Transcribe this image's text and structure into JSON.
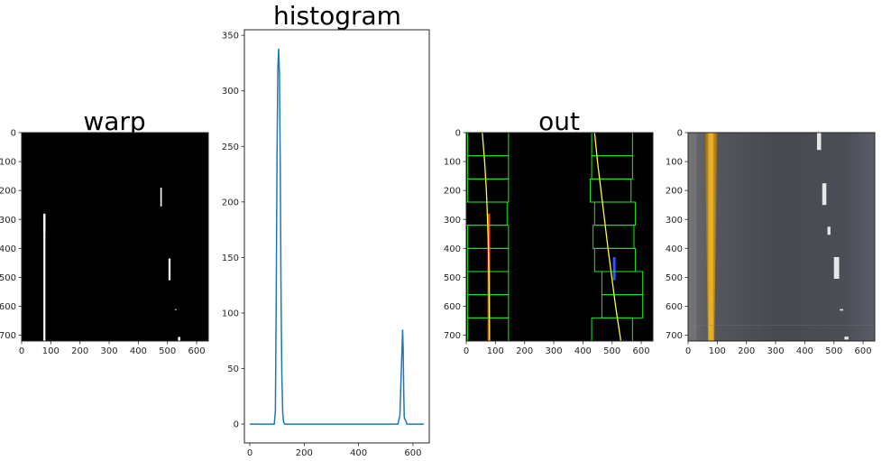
{
  "colors": {
    "background": "#ffffff",
    "axis": "#262626",
    "histogram_line": "#1f77b4",
    "window_box": "#22ee22",
    "fit_line": "#ffff33",
    "left_lane_pixels": "#ff3333",
    "right_lane_pixels": "#3355ff",
    "road_surface": "#4a4d55",
    "yellow_lane_marking": "#d9a21a"
  },
  "panels": [
    {
      "id": "warp",
      "title": "warp",
      "kind": "image",
      "image_content": "binary bird's-eye lane mask: white lane pixels on black background",
      "xticks": [
        "0",
        "100",
        "200",
        "300",
        "400",
        "500",
        "600"
      ],
      "yticks": [
        "0",
        "100",
        "200",
        "300",
        "400",
        "500",
        "600",
        "700"
      ],
      "xlim": [
        0,
        640
      ],
      "ylim": [
        720,
        0
      ]
    },
    {
      "id": "histogram",
      "title": "histogram",
      "kind": "line",
      "xticks": [
        "0",
        "200",
        "400",
        "600"
      ],
      "yticks": [
        "0",
        "50",
        "100",
        "150",
        "200",
        "250",
        "300",
        "350"
      ],
      "xlim": [
        -20,
        660
      ],
      "ylim": [
        -17,
        355
      ]
    },
    {
      "id": "out",
      "title": "out",
      "kind": "image",
      "image_content": "sliding-window search: green windows, yellow polynomial fits, red left-lane pixels, blue right-lane pixels on black",
      "xticks": [
        "0",
        "100",
        "200",
        "300",
        "400",
        "500",
        "600"
      ],
      "yticks": [
        "0",
        "100",
        "200",
        "300",
        "400",
        "500",
        "600",
        "700"
      ],
      "xlim": [
        0,
        640
      ],
      "ylim": [
        720,
        0
      ]
    },
    {
      "id": "color-warp",
      "title": "",
      "kind": "image",
      "image_content": "color bird's-eye view of road: grey asphalt, yellow solid line on the left, white dashed line on the right",
      "xticks": [
        "0",
        "100",
        "200",
        "300",
        "400",
        "500",
        "600"
      ],
      "yticks": [
        "0",
        "100",
        "200",
        "300",
        "400",
        "500",
        "600",
        "700"
      ],
      "xlim": [
        0,
        640
      ],
      "ylim": [
        720,
        0
      ]
    }
  ],
  "chart_data": {
    "type": "line",
    "title": "histogram",
    "xlabel": "",
    "ylabel": "",
    "xlim": [
      -20,
      660
    ],
    "ylim": [
      -17,
      355
    ],
    "grid": false,
    "series": [
      {
        "x": [
          0,
          90,
          94,
          97,
          100,
          103,
          106,
          109,
          112,
          115,
          118,
          121,
          124,
          128,
          200,
          300,
          400,
          545,
          552,
          556,
          560,
          562,
          564,
          566,
          568,
          571,
          574,
          578,
          585,
          640
        ],
        "values": [
          0,
          0,
          12,
          110,
          240,
          320,
          338,
          315,
          230,
          110,
          40,
          10,
          2,
          0,
          0,
          0,
          0,
          0,
          8,
          40,
          70,
          85,
          68,
          30,
          6,
          4,
          3,
          0,
          0,
          0
        ]
      }
    ],
    "lane_windows": {
      "left_centers": [
        75,
        75,
        75,
        70,
        75,
        75,
        75,
        75,
        75
      ],
      "right_centers": [
        500,
        500,
        495,
        510,
        505,
        510,
        535,
        535,
        500
      ],
      "half_width": 70
    },
    "lane_fits": {
      "y": [
        0,
        100,
        200,
        300,
        400,
        500,
        600,
        720
      ],
      "left_x": [
        55,
        63,
        69,
        73,
        76,
        78,
        79,
        80
      ],
      "right_x": [
        440,
        450,
        462,
        474,
        486,
        499,
        512,
        530
      ]
    },
    "warp_segments": [
      {
        "x": 78,
        "y1": 280,
        "y2": 720,
        "w": 7
      },
      {
        "x": 478,
        "y1": 190,
        "y2": 255,
        "w": 5
      },
      {
        "x": 507,
        "y1": 435,
        "y2": 510,
        "w": 7
      },
      {
        "x": 528,
        "y1": 610,
        "y2": 613,
        "w": 6
      },
      {
        "x": 540,
        "y1": 706,
        "y2": 720,
        "w": 8
      }
    ]
  }
}
